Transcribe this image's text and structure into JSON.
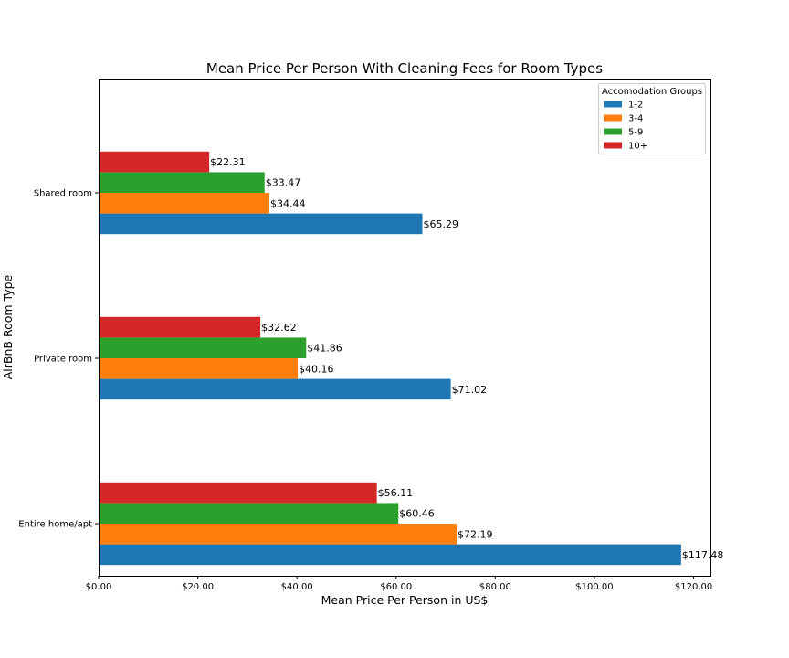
{
  "chart_data": {
    "type": "bar",
    "orientation": "horizontal",
    "title": "Mean Price Per Person With Cleaning Fees for Room Types",
    "xlabel": "Mean Price Per Person in US$",
    "ylabel": "AirBnB Room Type",
    "xlim": [
      0,
      123.4
    ],
    "xticks": [
      0,
      20,
      40,
      60,
      80,
      100,
      120
    ],
    "xtick_labels": [
      "$0.00",
      "$20.00",
      "$40.00",
      "$60.00",
      "$80.00",
      "$100.00",
      "$120.00"
    ],
    "categories": [
      "Entire home/apt",
      "Private room",
      "Shared room"
    ],
    "legend": {
      "title": "Accomodation Groups",
      "placement": "top-right"
    },
    "grid": false,
    "series": [
      {
        "name": "1-2",
        "color": "#1f77b4",
        "values": [
          117.48,
          71.02,
          65.29
        ],
        "labels": [
          "$117.48",
          "$71.02",
          "$65.29"
        ]
      },
      {
        "name": "3-4",
        "color": "#ff7f0e",
        "values": [
          72.19,
          40.16,
          34.44
        ],
        "labels": [
          "$72.19",
          "$40.16",
          "$34.44"
        ]
      },
      {
        "name": "5-9",
        "color": "#2ca02c",
        "values": [
          60.46,
          41.86,
          33.47
        ],
        "labels": [
          "$60.46",
          "$41.86",
          "$33.47"
        ]
      },
      {
        "name": "10+",
        "color": "#d62728",
        "values": [
          56.11,
          32.62,
          22.31
        ],
        "labels": [
          "$56.11",
          "$32.62",
          "$22.31"
        ]
      }
    ]
  }
}
